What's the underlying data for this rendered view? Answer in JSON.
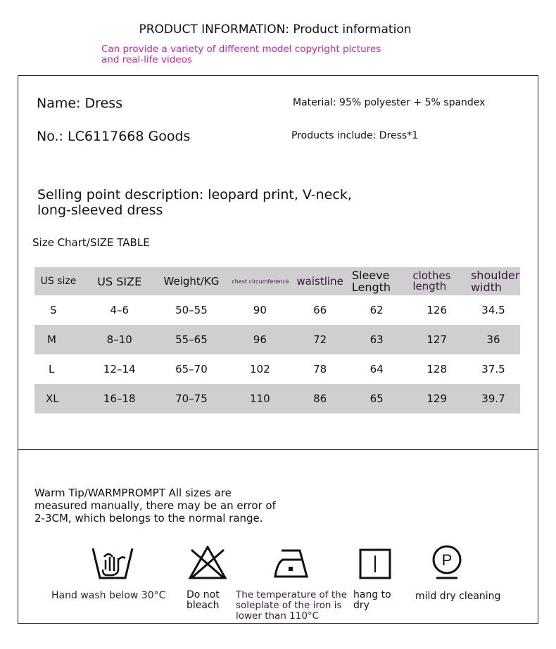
{
  "header": {
    "title": "PRODUCT INFORMATION: Product information",
    "note": "Can provide a variety of different model copyright pictures and real-life videos",
    "note_color": "#d81fa8"
  },
  "product": {
    "name": "Name: Dress",
    "number": "No.: LC6117668 Goods",
    "material": "Material: 95% polyester + 5% spandex",
    "includes": "Products include: Dress*1",
    "selling_point_line1": "Selling point description: leopard print, V-neck,",
    "selling_point_line2": "long-sleeved dress"
  },
  "size_chart": {
    "title": "Size Chart/SIZE TABLE",
    "headers": [
      "US size",
      "US SIZE",
      "Weight/KG",
      "chest circumference",
      "waistline",
      "Sleeve Length",
      "clothes length",
      "shoulder width"
    ],
    "rows": [
      [
        "S",
        "4–6",
        "50–55",
        "90",
        "66",
        "62",
        "126",
        "34.5"
      ],
      [
        "M",
        "8–10",
        "55–65",
        "96",
        "72",
        "63",
        "127",
        "36"
      ],
      [
        "L",
        "12–14",
        "65–70",
        "102",
        "78",
        "64",
        "128",
        "37.5"
      ],
      [
        "XL",
        "16–18",
        "70–75",
        "110",
        "86",
        "65",
        "129",
        "39.7"
      ]
    ]
  },
  "warm_tip": {
    "line1": "Warm Tip/WARMPROMPT All sizes are",
    "line2": "measured manually, there may be an error of",
    "line3": "2-3CM, which belongs to the normal range."
  },
  "care": [
    {
      "icon": "hand-wash-icon",
      "label": "Hand wash below 30°C"
    },
    {
      "icon": "do-not-bleach-icon",
      "label": "Do not bleach"
    },
    {
      "icon": "iron-low-icon",
      "label": "The temperature of the soleplate of the iron is lower than 110°C"
    },
    {
      "icon": "hang-dry-icon",
      "label": "hang to dry"
    },
    {
      "icon": "mild-dry-clean-icon",
      "label": "mild dry cleaning"
    }
  ]
}
